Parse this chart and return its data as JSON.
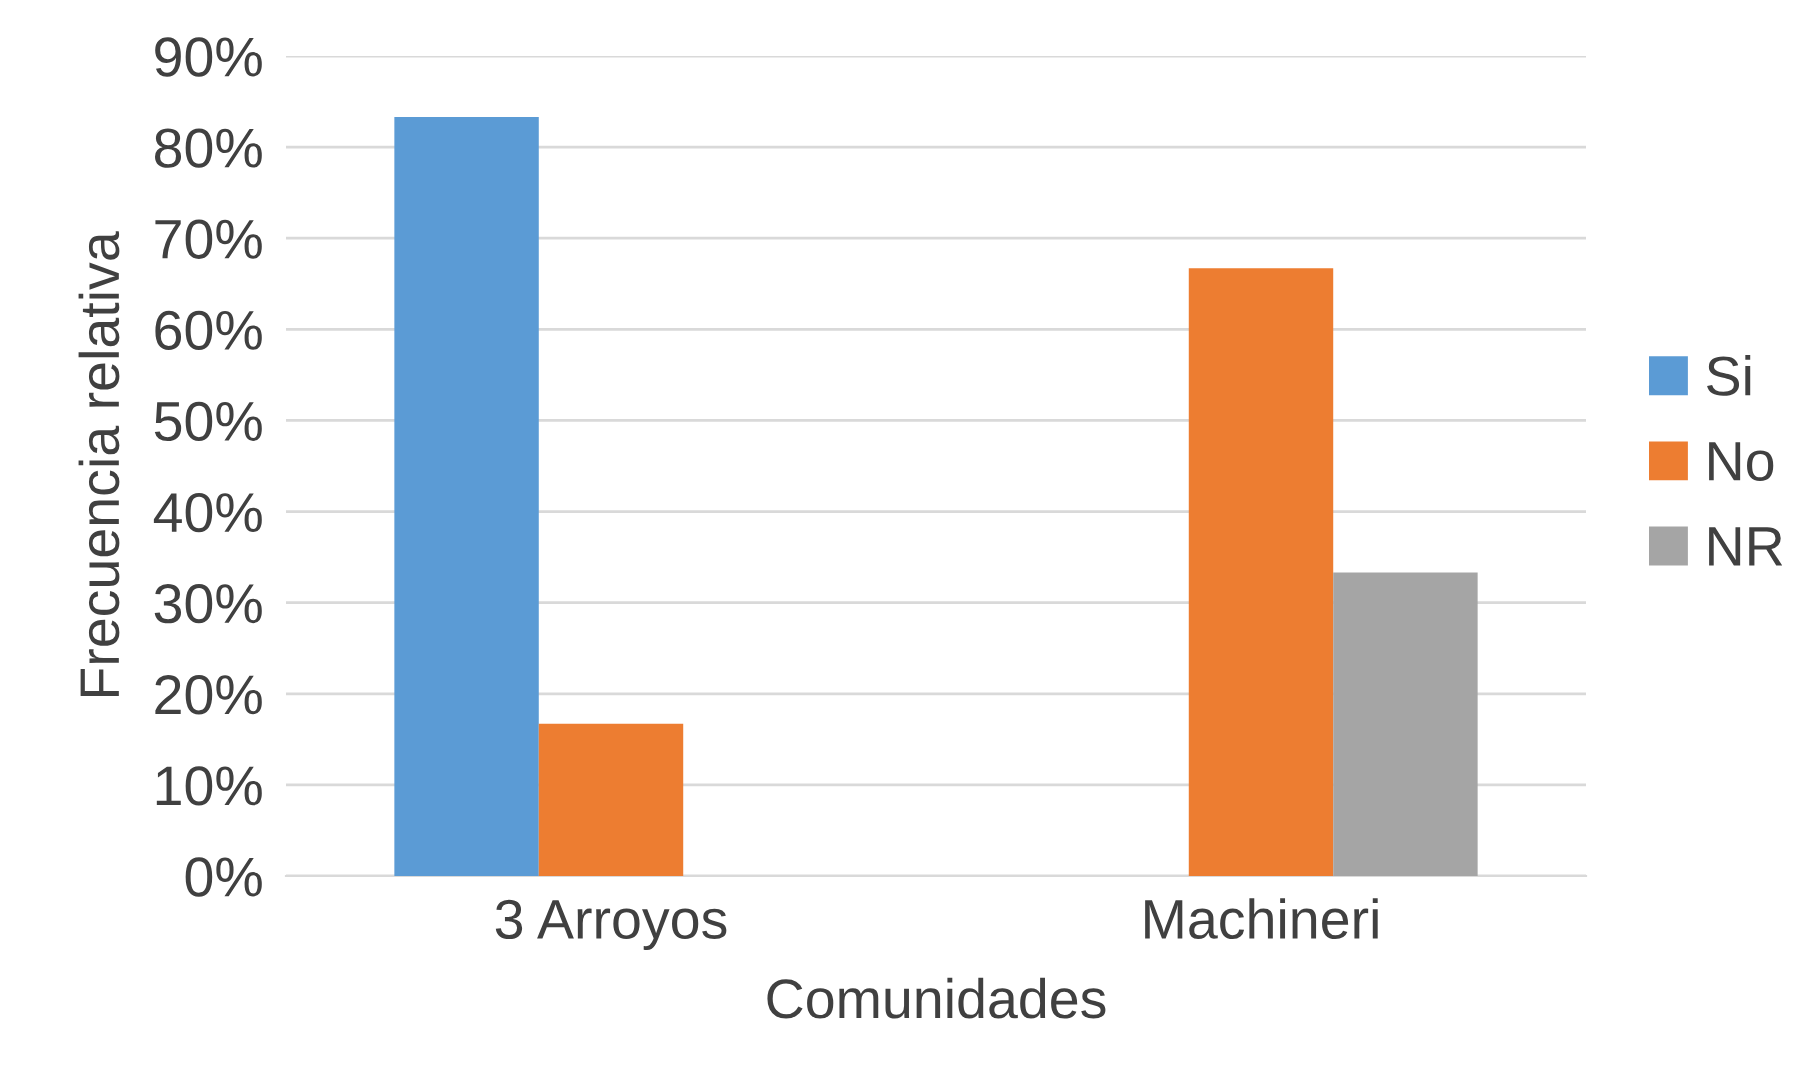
{
  "chart_data": {
    "type": "bar",
    "xlabel": "Comunidades",
    "ylabel": "Frecuencia relativa",
    "categories": [
      "3 Arroyos",
      "Machineri"
    ],
    "series": [
      {
        "name": "Si",
        "color": "#5b9bd5",
        "values": [
          83.3,
          null
        ]
      },
      {
        "name": "No",
        "color": "#ed7d31",
        "values": [
          16.7,
          66.7
        ]
      },
      {
        "name": "NR",
        "color": "#a5a5a5",
        "values": [
          null,
          33.3
        ]
      }
    ],
    "ylim": [
      0,
      90
    ],
    "yticks": [
      {
        "value": 0,
        "label": "0%"
      },
      {
        "value": 10,
        "label": "10%"
      },
      {
        "value": 20,
        "label": "20%"
      },
      {
        "value": 30,
        "label": "30%"
      },
      {
        "value": 40,
        "label": "40%"
      },
      {
        "value": 50,
        "label": "50%"
      },
      {
        "value": 60,
        "label": "60%"
      },
      {
        "value": 70,
        "label": "70%"
      },
      {
        "value": 80,
        "label": "80%"
      },
      {
        "value": 90,
        "label": "90%"
      }
    ],
    "grid": "y",
    "legend": "right"
  }
}
